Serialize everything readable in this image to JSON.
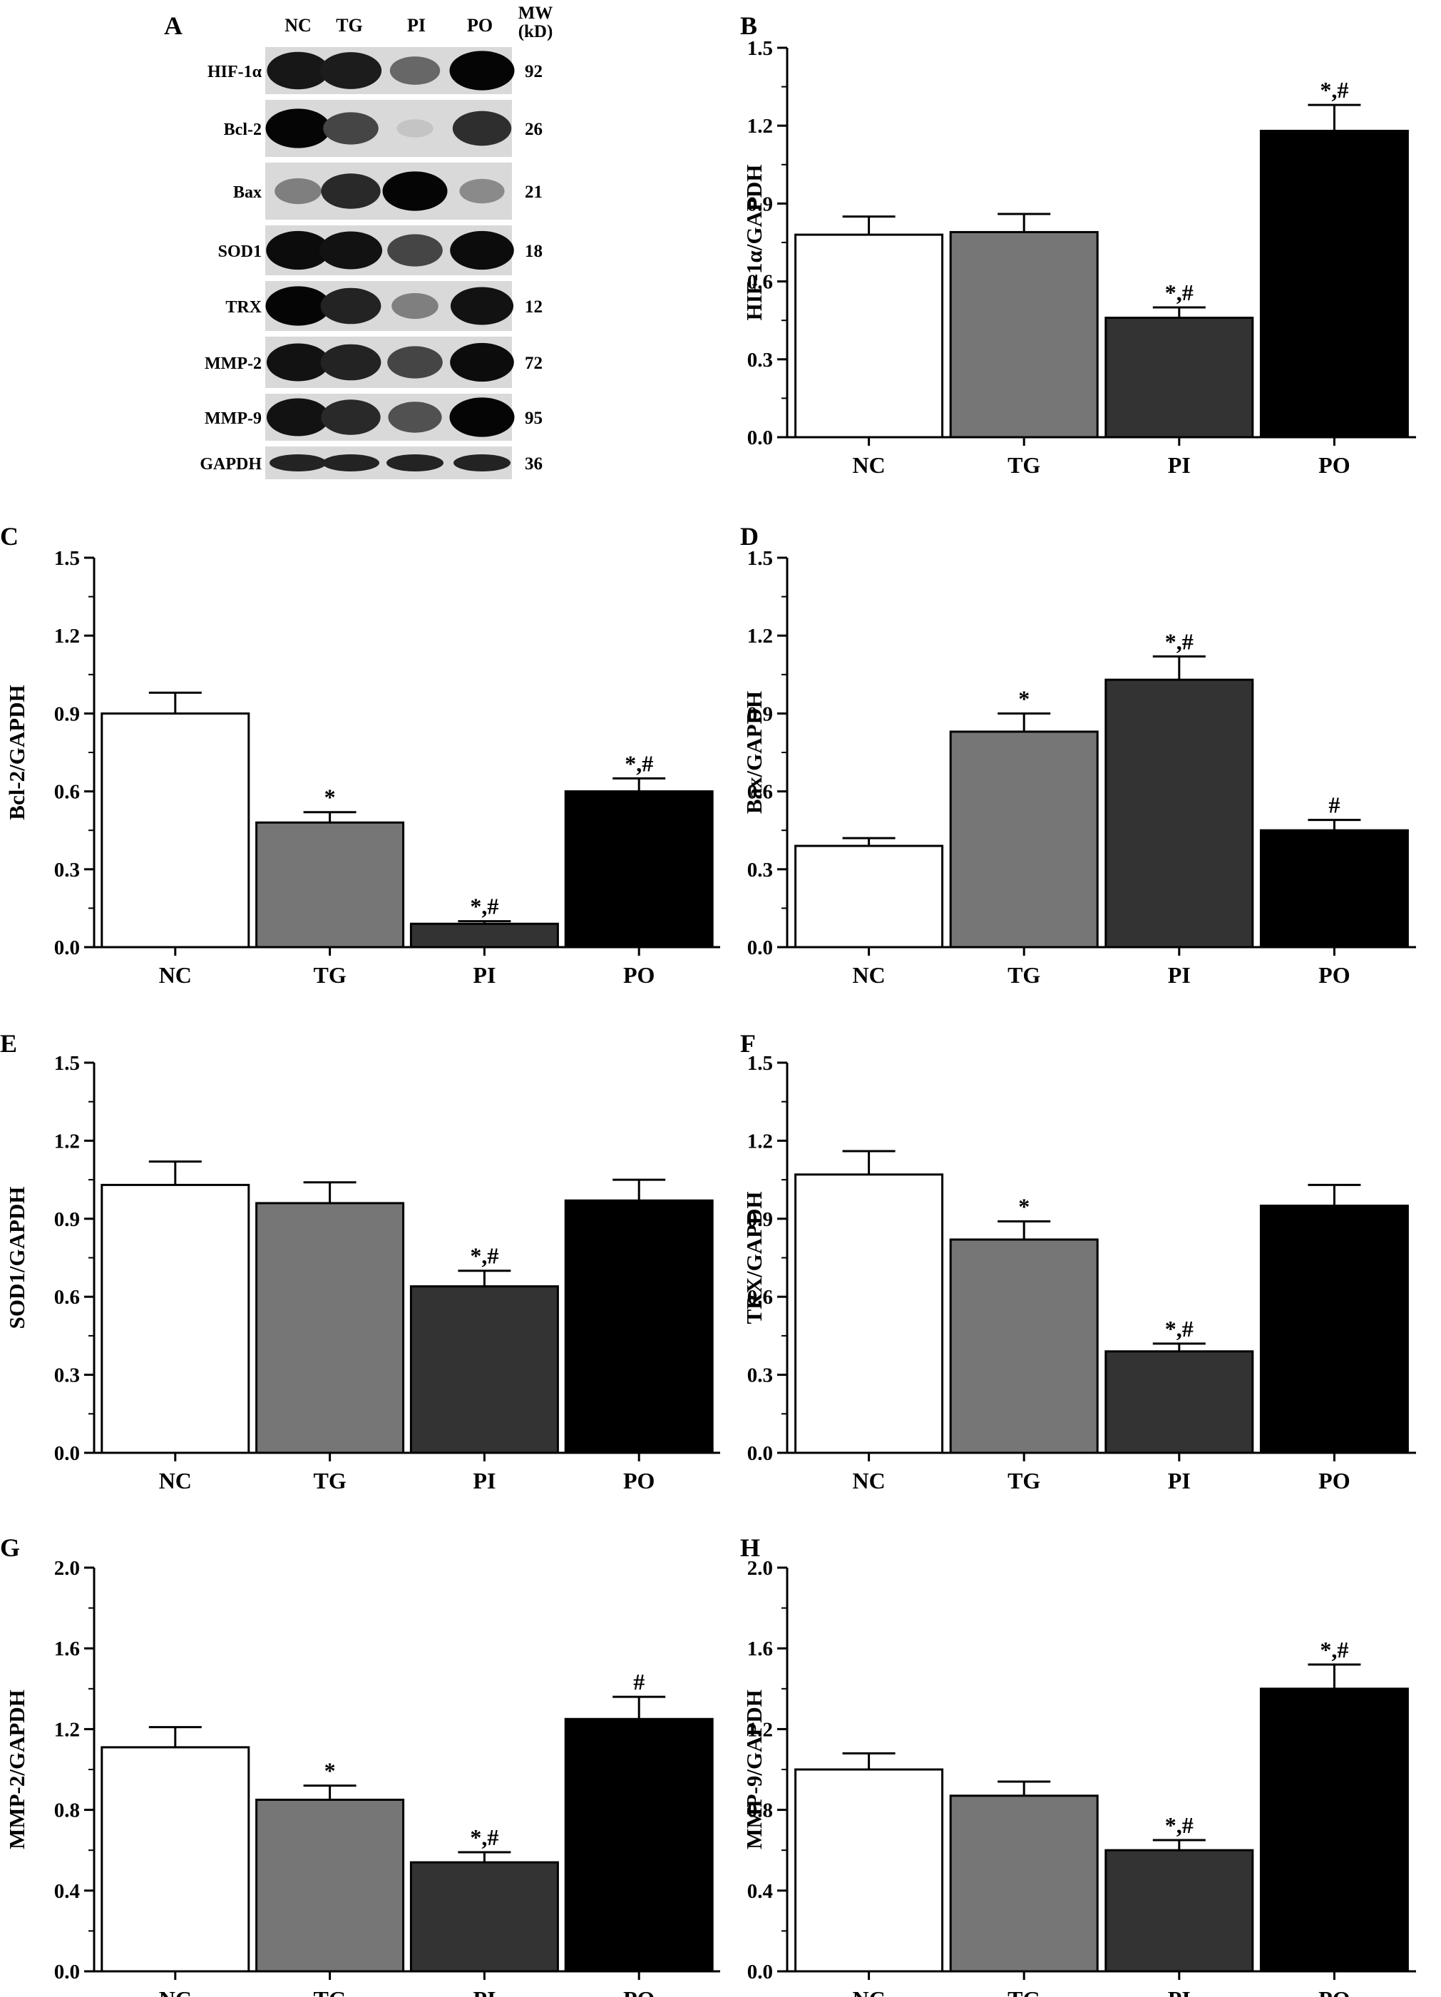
{
  "blot": {
    "panel_label": "A",
    "lanes": [
      "NC",
      "TG",
      "PI",
      "PO"
    ],
    "mw_header": [
      "MW",
      "(kD)"
    ],
    "bands": [
      {
        "protein": "HIF-1α",
        "mw": "92",
        "intensity": [
          0.9,
          0.88,
          0.55,
          0.98
        ]
      },
      {
        "protein": "Bcl-2",
        "mw": "26",
        "intensity": [
          0.98,
          0.7,
          0.15,
          0.8
        ]
      },
      {
        "protein": "Bax",
        "mw": "21",
        "intensity": [
          0.45,
          0.82,
          0.98,
          0.4
        ]
      },
      {
        "protein": "SOD1",
        "mw": "18",
        "intensity": [
          0.95,
          0.92,
          0.7,
          0.95
        ]
      },
      {
        "protein": "TRX",
        "mw": "12",
        "intensity": [
          0.98,
          0.85,
          0.45,
          0.92
        ]
      },
      {
        "protein": "MMP-2",
        "mw": "72",
        "intensity": [
          0.92,
          0.85,
          0.7,
          0.95
        ]
      },
      {
        "protein": "MMP-9",
        "mw": "95",
        "intensity": [
          0.92,
          0.82,
          0.65,
          0.98
        ]
      },
      {
        "protein": "GAPDH",
        "mw": "36",
        "intensity": [
          0.85,
          0.85,
          0.85,
          0.85
        ]
      }
    ]
  },
  "colors": {
    "NC": "#ffffff",
    "TG": "#767676",
    "PI": "#333333",
    "PO": "#000000"
  },
  "chart_data": [
    {
      "panel": "B",
      "type": "bar",
      "categories": [
        "NC",
        "TG",
        "PI",
        "PO"
      ],
      "ylabel": "HIF-1α/GAPDH",
      "ylim": [
        0,
        1.5
      ],
      "yticks": [
        "0.0",
        "0.3",
        "0.6",
        "0.9",
        "1.2",
        "1.5"
      ],
      "values": [
        0.78,
        0.79,
        0.46,
        1.18
      ],
      "errors": [
        0.07,
        0.07,
        0.04,
        0.1
      ],
      "annotations": [
        "",
        "",
        "*,#",
        "*,#"
      ]
    },
    {
      "panel": "C",
      "type": "bar",
      "categories": [
        "NC",
        "TG",
        "PI",
        "PO"
      ],
      "ylabel": "Bcl-2/GAPDH",
      "ylim": [
        0,
        1.5
      ],
      "yticks": [
        "0.0",
        "0.3",
        "0.6",
        "0.9",
        "1.2",
        "1.5"
      ],
      "values": [
        0.9,
        0.48,
        0.09,
        0.6
      ],
      "errors": [
        0.08,
        0.04,
        0.01,
        0.05
      ],
      "annotations": [
        "",
        "*",
        "*,#",
        "*,#"
      ]
    },
    {
      "panel": "D",
      "type": "bar",
      "categories": [
        "NC",
        "TG",
        "PI",
        "PO"
      ],
      "ylabel": "Bax/GAPDH",
      "ylim": [
        0,
        1.5
      ],
      "yticks": [
        "0.0",
        "0.3",
        "0.6",
        "0.9",
        "1.2",
        "1.5"
      ],
      "values": [
        0.39,
        0.83,
        1.03,
        0.45
      ],
      "errors": [
        0.03,
        0.07,
        0.09,
        0.04
      ],
      "annotations": [
        "",
        "*",
        "*,#",
        "#"
      ]
    },
    {
      "panel": "E",
      "type": "bar",
      "categories": [
        "NC",
        "TG",
        "PI",
        "PO"
      ],
      "ylabel": "SOD1/GAPDH",
      "ylim": [
        0,
        1.5
      ],
      "yticks": [
        "0.0",
        "0.3",
        "0.6",
        "0.9",
        "1.2",
        "1.5"
      ],
      "values": [
        1.03,
        0.96,
        0.64,
        0.97
      ],
      "errors": [
        0.09,
        0.08,
        0.06,
        0.08
      ],
      "annotations": [
        "",
        "",
        "*,#",
        ""
      ]
    },
    {
      "panel": "F",
      "type": "bar",
      "categories": [
        "NC",
        "TG",
        "PI",
        "PO"
      ],
      "ylabel": "TRX/GAPDH",
      "ylim": [
        0,
        1.5
      ],
      "yticks": [
        "0.0",
        "0.3",
        "0.6",
        "0.9",
        "1.2",
        "1.5"
      ],
      "values": [
        1.07,
        0.82,
        0.39,
        0.95
      ],
      "errors": [
        0.09,
        0.07,
        0.03,
        0.08
      ],
      "annotations": [
        "",
        "*",
        "*,#",
        ""
      ]
    },
    {
      "panel": "G",
      "type": "bar",
      "categories": [
        "NC",
        "TG",
        "PI",
        "PO"
      ],
      "ylabel": "MMP-2/GAPDH",
      "ylim": [
        0,
        2.0
      ],
      "yticks": [
        "0.0",
        "0.4",
        "0.8",
        "1.2",
        "1.6",
        "2.0"
      ],
      "values": [
        1.11,
        0.85,
        0.54,
        1.25
      ],
      "errors": [
        0.1,
        0.07,
        0.05,
        0.11
      ],
      "annotations": [
        "",
        "*",
        "*,#",
        "#"
      ]
    },
    {
      "panel": "H",
      "type": "bar",
      "categories": [
        "NC",
        "TG",
        "PI",
        "PO"
      ],
      "ylabel": "MMP-9/GAPDH",
      "ylim": [
        0,
        2.0
      ],
      "yticks": [
        "0.0",
        "0.4",
        "0.8",
        "1.2",
        "1.6",
        "2.0"
      ],
      "values": [
        1.0,
        0.87,
        0.6,
        1.4
      ],
      "errors": [
        0.08,
        0.07,
        0.05,
        0.12
      ],
      "annotations": [
        "",
        "",
        "*,#",
        "*,#"
      ]
    }
  ]
}
